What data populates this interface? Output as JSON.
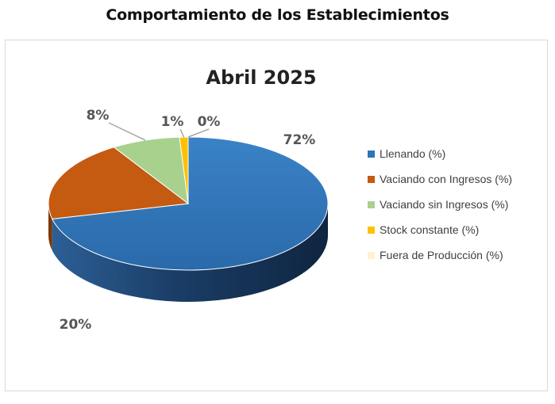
{
  "page": {
    "heading": "Comportamiento de los Establecimientos"
  },
  "chart_data": {
    "type": "pie",
    "title": "Abril 2025",
    "series": [
      {
        "name": "Llenando (%)",
        "value": 72,
        "label": "72%",
        "color": "#2E75B6"
      },
      {
        "name": "Vaciando con Ingresos (%)",
        "value": 20,
        "label": "20%",
        "color": "#C55A11"
      },
      {
        "name": "Vaciando sin Ingresos (%)",
        "value": 8,
        "label": "8%",
        "color": "#A9D18E"
      },
      {
        "name": "Stock constante (%)",
        "value": 1,
        "label": "1%",
        "color": "#FFC000"
      },
      {
        "name": "Fuera de Producción (%)",
        "value": 0,
        "label": "0%",
        "color": "#FFF2CC"
      }
    ],
    "legend_position": "right",
    "style": "3d"
  }
}
